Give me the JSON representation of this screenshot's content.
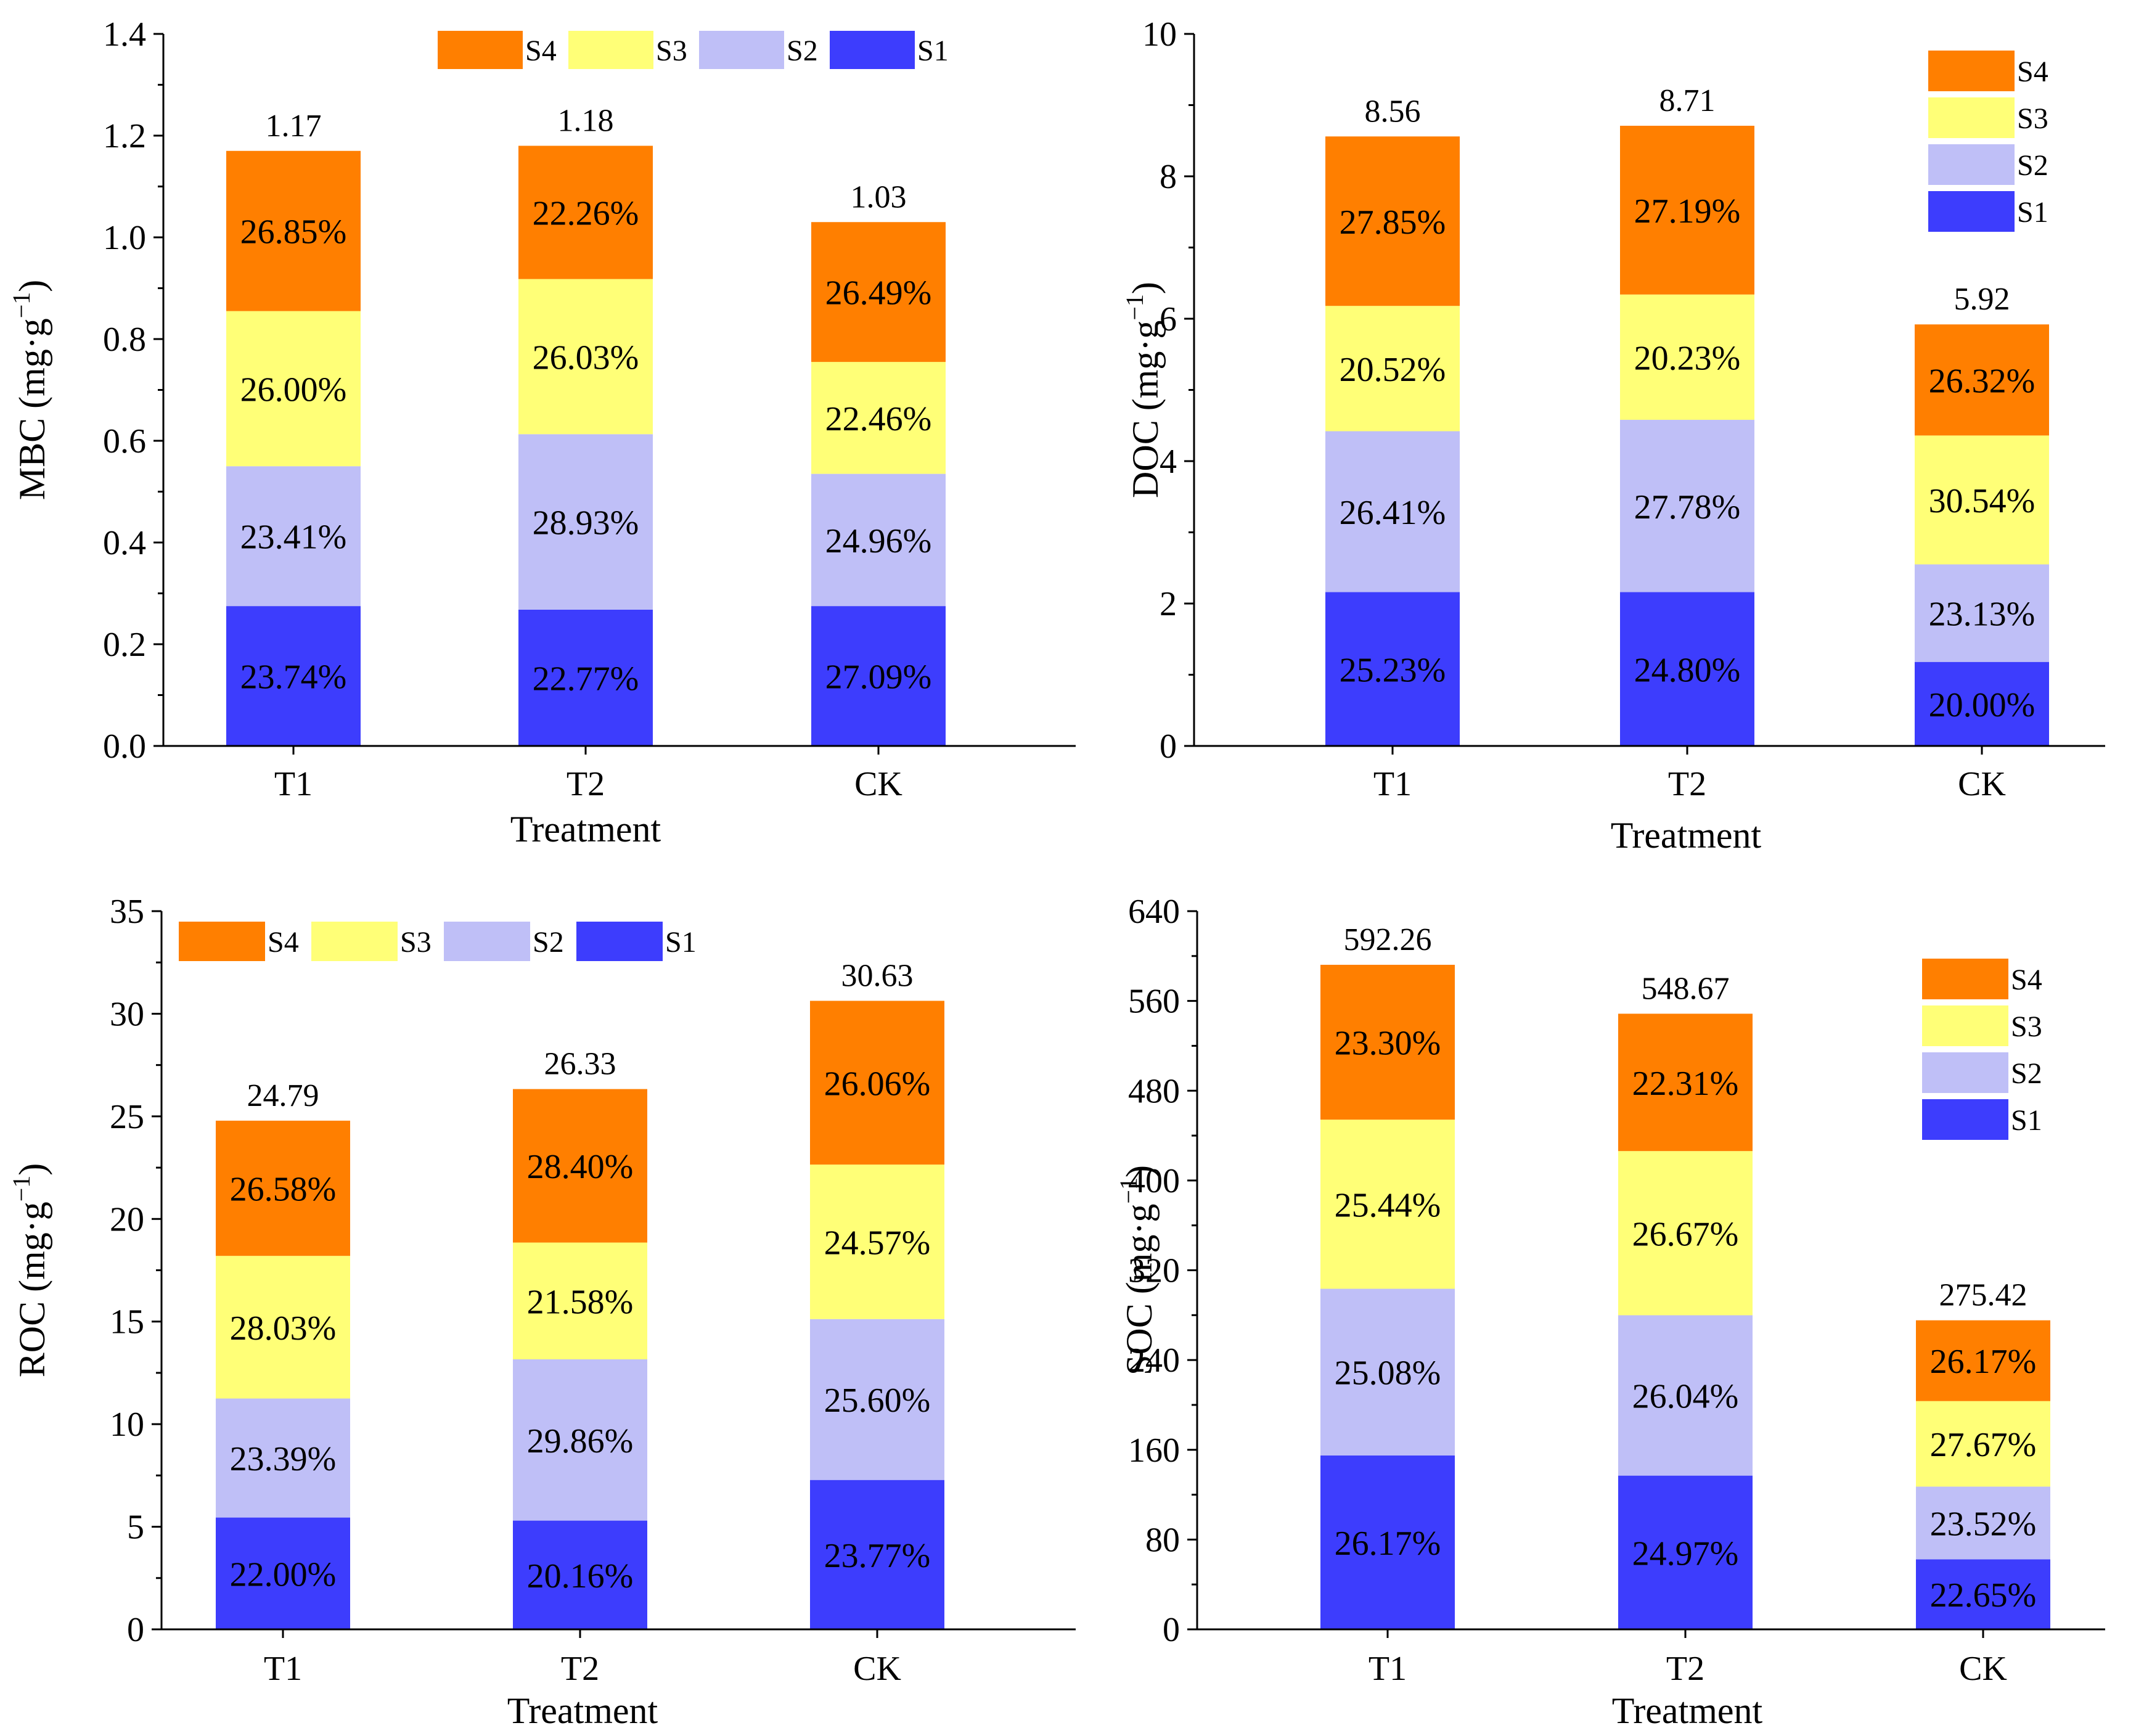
{
  "colors": {
    "S1": "#3d3dfd",
    "S2": "#bfbff7",
    "S3": "#ffff77",
    "S4": "#ff7f00"
  },
  "chart_data": [
    {
      "id": "mbc",
      "type": "bar",
      "stacked": true,
      "ylabel": "MBC (mg·g",
      "ylabel_sup": "−1",
      "ylabel_close": ")",
      "xlabel": "Treatment",
      "categories": [
        "T1",
        "T2",
        "CK"
      ],
      "ylim": [
        0,
        1.4
      ],
      "yticks": [
        "0.0",
        "0.2",
        "0.4",
        "0.6",
        "0.8",
        "1.0",
        "1.2",
        "1.4"
      ],
      "legend_position": "top",
      "legend_order": [
        "S4",
        "S3",
        "S2",
        "S1"
      ],
      "totals": [
        1.17,
        1.18,
        1.03
      ],
      "total_labels": [
        "1.17",
        "1.18",
        "1.03"
      ],
      "series": [
        {
          "name": "S1",
          "values": [
            0.275,
            0.268,
            0.275
          ],
          "labels": [
            "23.74%",
            "22.77%",
            "27.09%"
          ]
        },
        {
          "name": "S2",
          "values": [
            0.275,
            0.345,
            0.26
          ],
          "labels": [
            "23.41%",
            "28.93%",
            "24.96%"
          ]
        },
        {
          "name": "S3",
          "values": [
            0.305,
            0.305,
            0.22
          ],
          "labels": [
            "26.00%",
            "26.03%",
            "22.46%"
          ]
        },
        {
          "name": "S4",
          "values": [
            0.315,
            0.262,
            0.275
          ],
          "labels": [
            "26.85%",
            "22.26%",
            "26.49%"
          ]
        }
      ]
    },
    {
      "id": "doc",
      "type": "bar",
      "stacked": true,
      "ylabel": "DOC (mg·g",
      "ylabel_sup": "−1",
      "ylabel_close": ")",
      "xlabel": "Treatment",
      "categories": [
        "T1",
        "T2",
        "CK"
      ],
      "ylim": [
        0,
        10
      ],
      "yticks": [
        "0",
        "2",
        "4",
        "6",
        "8",
        "10"
      ],
      "legend_position": "top-right",
      "legend_order": [
        "S4",
        "S3",
        "S2",
        "S1"
      ],
      "totals": [
        8.56,
        8.71,
        5.92
      ],
      "total_labels": [
        "8.56",
        "8.71",
        "5.92"
      ],
      "series": [
        {
          "name": "S1",
          "values": [
            2.16,
            2.16,
            1.18
          ],
          "labels": [
            "25.23%",
            "24.80%",
            "20.00%"
          ]
        },
        {
          "name": "S2",
          "values": [
            2.26,
            2.42,
            1.37
          ],
          "labels": [
            "26.41%",
            "27.78%",
            "23.13%"
          ]
        },
        {
          "name": "S3",
          "values": [
            1.76,
            1.76,
            1.81
          ],
          "labels": [
            "20.52%",
            "20.23%",
            "30.54%"
          ]
        },
        {
          "name": "S4",
          "values": [
            2.38,
            2.37,
            1.56
          ],
          "labels": [
            "27.85%",
            "27.19%",
            "26.32%"
          ]
        }
      ]
    },
    {
      "id": "roc",
      "type": "bar",
      "stacked": true,
      "ylabel": "ROC (mg·g",
      "ylabel_sup": "−1",
      "ylabel_close": ")",
      "xlabel": "Treatment",
      "categories": [
        "T1",
        "T2",
        "CK"
      ],
      "ylim": [
        0,
        35
      ],
      "yticks": [
        "0",
        "5",
        "10",
        "15",
        "20",
        "25",
        "30",
        "35"
      ],
      "legend_position": "top",
      "legend_order": [
        "S4",
        "S3",
        "S2",
        "S1"
      ],
      "totals": [
        24.79,
        26.33,
        30.63
      ],
      "total_labels": [
        "24.79",
        "26.33",
        "30.63"
      ],
      "series": [
        {
          "name": "S1",
          "values": [
            5.45,
            5.3,
            7.28
          ],
          "labels": [
            "22.00%",
            "20.16%",
            "23.77%"
          ]
        },
        {
          "name": "S2",
          "values": [
            5.8,
            7.86,
            7.84
          ],
          "labels": [
            "23.39%",
            "29.86%",
            "25.60%"
          ]
        },
        {
          "name": "S3",
          "values": [
            6.95,
            5.69,
            7.53
          ],
          "labels": [
            "28.03%",
            "21.58%",
            "24.57%"
          ]
        },
        {
          "name": "S4",
          "values": [
            6.59,
            7.48,
            7.98
          ],
          "labels": [
            "26.58%",
            "28.40%",
            "26.06%"
          ]
        }
      ]
    },
    {
      "id": "soc",
      "type": "bar",
      "stacked": true,
      "ylabel": "SOC (mg·g",
      "ylabel_sup": "−1",
      "ylabel_close": ")",
      "xlabel": "Treatment",
      "categories": [
        "T1",
        "T2",
        "CK"
      ],
      "ylim": [
        0,
        640
      ],
      "yticks": [
        "0",
        "80",
        "160",
        "240",
        "320",
        "400",
        "480",
        "560",
        "640"
      ],
      "legend_position": "top-right",
      "legend_order": [
        "S4",
        "S3",
        "S2",
        "S1"
      ],
      "totals": [
        592.26,
        548.67,
        275.42
      ],
      "total_labels": [
        "592.26",
        "548.67",
        "275.42"
      ],
      "series": [
        {
          "name": "S1",
          "values": [
            155.0,
            137.0,
            62.4
          ],
          "labels": [
            "26.17%",
            "24.97%",
            "22.65%"
          ]
        },
        {
          "name": "S2",
          "values": [
            148.5,
            142.9,
            64.8
          ],
          "labels": [
            "25.08%",
            "26.04%",
            "23.52%"
          ]
        },
        {
          "name": "S3",
          "values": [
            150.7,
            146.3,
            76.2
          ],
          "labels": [
            "25.44%",
            "26.67%",
            "27.67%"
          ]
        },
        {
          "name": "S4",
          "values": [
            138.0,
            122.4,
            72.0
          ],
          "labels": [
            "23.30%",
            "22.31%",
            "26.17%"
          ]
        }
      ]
    }
  ]
}
